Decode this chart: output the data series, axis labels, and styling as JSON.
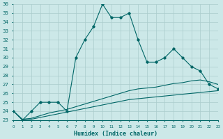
{
  "x": [
    0,
    1,
    2,
    3,
    4,
    5,
    6,
    7,
    8,
    9,
    10,
    11,
    12,
    13,
    14,
    15,
    16,
    17,
    18,
    19,
    20,
    21,
    22,
    23
  ],
  "line1": [
    24,
    23,
    24,
    25,
    25,
    25,
    24,
    30,
    32,
    33.5,
    36,
    34.5,
    34.5,
    35,
    32,
    29.5,
    29.5,
    30,
    31,
    30,
    29,
    28.5,
    27,
    26.5
  ],
  "line2": [
    24,
    23.1,
    23.2,
    23.5,
    23.8,
    24.0,
    24.2,
    24.5,
    24.8,
    25.1,
    25.4,
    25.7,
    26.0,
    26.3,
    26.5,
    26.6,
    26.7,
    26.9,
    27.1,
    27.2,
    27.4,
    27.5,
    27.3,
    27.0
  ],
  "line3": [
    24,
    23.0,
    23.1,
    23.3,
    23.5,
    23.7,
    23.9,
    24.1,
    24.3,
    24.5,
    24.7,
    24.9,
    25.1,
    25.3,
    25.4,
    25.5,
    25.6,
    25.7,
    25.8,
    25.9,
    26.0,
    26.1,
    26.2,
    26.3
  ],
  "color": "#006666",
  "bg_color": "#cce8e8",
  "grid_color": "#aacccc",
  "xlabel": "Humidex (Indice chaleur)",
  "ylim_min": 23,
  "ylim_max": 36,
  "xlim_min": 0,
  "xlim_max": 23
}
